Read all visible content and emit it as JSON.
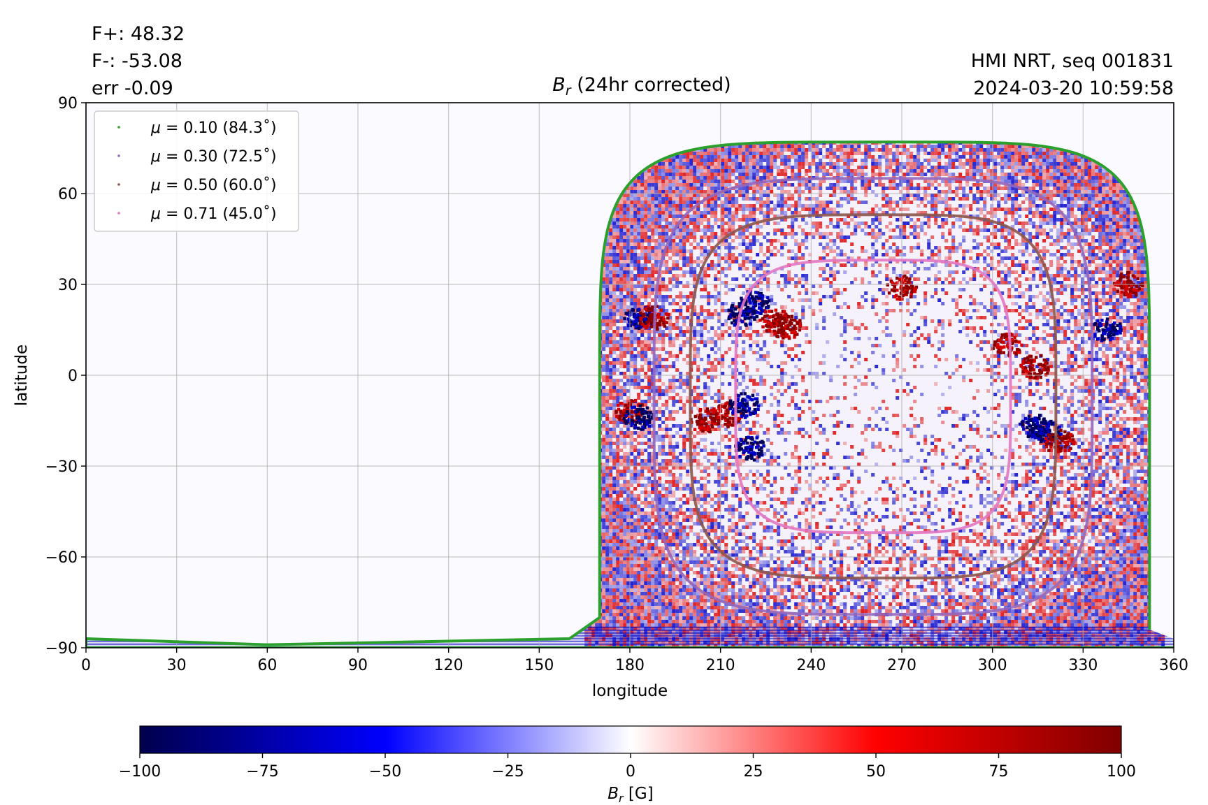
{
  "header": {
    "stats": [
      "F+: 48.32",
      "F-: -53.08",
      "err -0.09"
    ],
    "source_lines": [
      "HMI NRT, seq 001831",
      "2024-03-20 10:59:58"
    ]
  },
  "chart_data": {
    "type": "heatmap",
    "title": "B_r (24hr corrected)",
    "title_symbol": "B",
    "title_subscript": "r",
    "title_rest": " (24hr corrected)",
    "xlabel": "longitude",
    "ylabel": "latitude",
    "xlim": [
      0,
      360
    ],
    "ylim": [
      -90,
      90
    ],
    "xticks": [
      0,
      30,
      60,
      90,
      120,
      150,
      180,
      210,
      240,
      270,
      300,
      330,
      360
    ],
    "yticks": [
      -90,
      -60,
      -30,
      0,
      30,
      60,
      90
    ],
    "ytick_labels": [
      "−90",
      "−60",
      "−30",
      "0",
      "30",
      "60",
      "90"
    ],
    "grid": true,
    "legend_position": "top-left",
    "disk_center_lon": 264,
    "contours": [
      {
        "name": "μ = 0.10 (84.3˚)",
        "label_prefix": "μ",
        "label_rest": " = 0.10 (84.3˚)",
        "angle_deg": 84.3,
        "color": "#2ca02c",
        "lat_top": 77,
        "lat_bottom": -90,
        "lon_left": 170,
        "lon_right": 352
      },
      {
        "name": "μ = 0.30 (72.5˚)",
        "label_prefix": "μ",
        "label_rest": " = 0.30 (72.5˚)",
        "angle_deg": 72.5,
        "color": "#9467bd",
        "lat_top": 65,
        "lat_bottom": -79,
        "lon_left": 188,
        "lon_right": 333
      },
      {
        "name": "μ = 0.50 (60.0˚)",
        "label_prefix": "μ",
        "label_rest": " = 0.50 (60.0˚)",
        "angle_deg": 60.0,
        "color": "#8c564b",
        "lat_top": 53,
        "lat_bottom": -67,
        "lon_left": 200,
        "lon_right": 321
      },
      {
        "name": "μ = 0.71 (45.0˚)",
        "label_prefix": "μ",
        "label_rest": " = 0.71 (45.0˚)",
        "angle_deg": 45.0,
        "color": "#e377c2",
        "lat_top": 38,
        "lat_bottom": -52,
        "lon_left": 215,
        "lon_right": 306
      }
    ],
    "active_regions": [
      {
        "lon": 183,
        "lat": 19,
        "polarity": -1
      },
      {
        "lon": 188,
        "lat": 19,
        "polarity": 1
      },
      {
        "lon": 180,
        "lat": -12,
        "polarity": 1
      },
      {
        "lon": 183,
        "lat": -14,
        "polarity": -1
      },
      {
        "lon": 212,
        "lat": -13,
        "polarity": 1
      },
      {
        "lon": 218,
        "lat": -10,
        "polarity": -1
      },
      {
        "lon": 205,
        "lat": -15,
        "polarity": 1
      },
      {
        "lon": 217,
        "lat": 20,
        "polarity": -1
      },
      {
        "lon": 221,
        "lat": 24,
        "polarity": -1
      },
      {
        "lon": 228,
        "lat": 18,
        "polarity": 1
      },
      {
        "lon": 232,
        "lat": 16,
        "polarity": 1
      },
      {
        "lon": 270,
        "lat": 29,
        "polarity": 1
      },
      {
        "lon": 314,
        "lat": -17,
        "polarity": -1
      },
      {
        "lon": 318,
        "lat": -19,
        "polarity": -1
      },
      {
        "lon": 322,
        "lat": -22,
        "polarity": 1
      },
      {
        "lon": 305,
        "lat": 10,
        "polarity": 1
      },
      {
        "lon": 314,
        "lat": 3,
        "polarity": 1
      },
      {
        "lon": 345,
        "lat": 30,
        "polarity": 1
      },
      {
        "lon": 338,
        "lat": 15,
        "polarity": -1
      },
      {
        "lon": 220,
        "lat": -24,
        "polarity": -1
      }
    ],
    "colorbar": {
      "label_symbol": "B",
      "label_subscript": "r",
      "label_rest": " [G]",
      "range": [
        -100,
        100
      ],
      "ticks": [
        -100,
        -75,
        -50,
        -25,
        0,
        25,
        50,
        75,
        100
      ],
      "tick_labels": [
        "−100",
        "−75",
        "−50",
        "−25",
        "0",
        "25",
        "50",
        "75",
        "100"
      ],
      "colormap": "seismic",
      "stops": [
        "#00004c",
        "#0000ff",
        "#ffffff",
        "#ff0000",
        "#800000"
      ]
    }
  }
}
